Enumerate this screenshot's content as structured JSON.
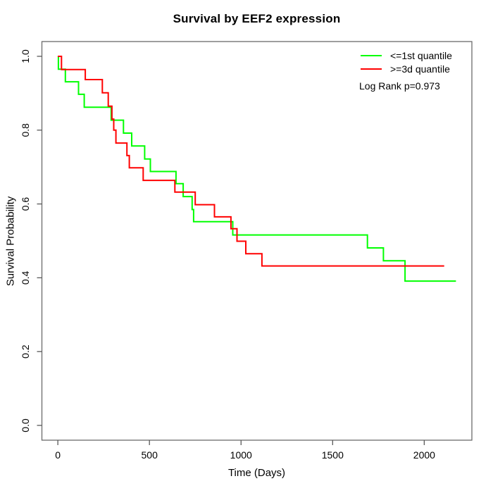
{
  "title": "Survival by EEF2 expression",
  "legend": {
    "items": [
      {
        "label": "<=1st quantile",
        "color": "#00ff00"
      },
      {
        "label": ">=3d quantile",
        "color": "#ff0000"
      }
    ],
    "note": "Log Rank p=0.973"
  },
  "axes": {
    "x_title": "Time (Days)",
    "y_title": "Survival Probability"
  },
  "style": {
    "box_color": "#6b6b6b",
    "tick_color": "#5a5a5a",
    "text_color": "#000000",
    "line_width": 2
  },
  "chart_data": {
    "type": "line",
    "subtype": "kaplan-meier-step",
    "title": "Survival by EEF2 expression",
    "xlabel": "Time (Days)",
    "ylabel": "Survival Probability",
    "grid": false,
    "legend_position": "top-right",
    "annotation": "Log Rank p=0.973",
    "xlim": [
      -87,
      2260
    ],
    "ylim": [
      -0.04,
      1.04
    ],
    "xticks": [
      {
        "value": 0,
        "label": "0"
      },
      {
        "value": 500,
        "label": "500"
      },
      {
        "value": 1000,
        "label": "1000"
      },
      {
        "value": 1500,
        "label": "1500"
      },
      {
        "value": 2000,
        "label": "2000"
      }
    ],
    "yticks": [
      {
        "value": 0.0,
        "label": "0.0"
      },
      {
        "value": 0.2,
        "label": "0.2"
      },
      {
        "value": 0.4,
        "label": "0.4"
      },
      {
        "value": 0.6,
        "label": "0.6"
      },
      {
        "value": 0.8,
        "label": "0.8"
      },
      {
        "value": 1.0,
        "label": "1.0"
      }
    ],
    "series": [
      {
        "name": "<=1st quantile",
        "color": "#00ff00",
        "steps": [
          [
            0,
            1.0
          ],
          [
            3,
            0.965
          ],
          [
            41,
            0.931
          ],
          [
            113,
            0.897
          ],
          [
            144,
            0.862
          ],
          [
            291,
            0.827
          ],
          [
            358,
            0.792
          ],
          [
            403,
            0.757
          ],
          [
            474,
            0.722
          ],
          [
            505,
            0.688
          ],
          [
            645,
            0.655
          ],
          [
            684,
            0.62
          ],
          [
            733,
            0.585
          ],
          [
            741,
            0.552
          ],
          [
            955,
            0.516
          ],
          [
            1690,
            0.481
          ],
          [
            1777,
            0.446
          ],
          [
            1895,
            0.391
          ],
          [
            2173,
            0.391
          ]
        ]
      },
      {
        "name": ">=3d quantile",
        "color": "#ff0000",
        "steps": [
          [
            0,
            1.0
          ],
          [
            20,
            0.964
          ],
          [
            150,
            0.937
          ],
          [
            243,
            0.901
          ],
          [
            275,
            0.865
          ],
          [
            295,
            0.83
          ],
          [
            305,
            0.8
          ],
          [
            317,
            0.765
          ],
          [
            377,
            0.731
          ],
          [
            390,
            0.698
          ],
          [
            466,
            0.664
          ],
          [
            639,
            0.632
          ],
          [
            750,
            0.598
          ],
          [
            855,
            0.565
          ],
          [
            945,
            0.533
          ],
          [
            978,
            0.499
          ],
          [
            1026,
            0.465
          ],
          [
            1114,
            0.432
          ],
          [
            2109,
            0.432
          ]
        ]
      }
    ]
  }
}
